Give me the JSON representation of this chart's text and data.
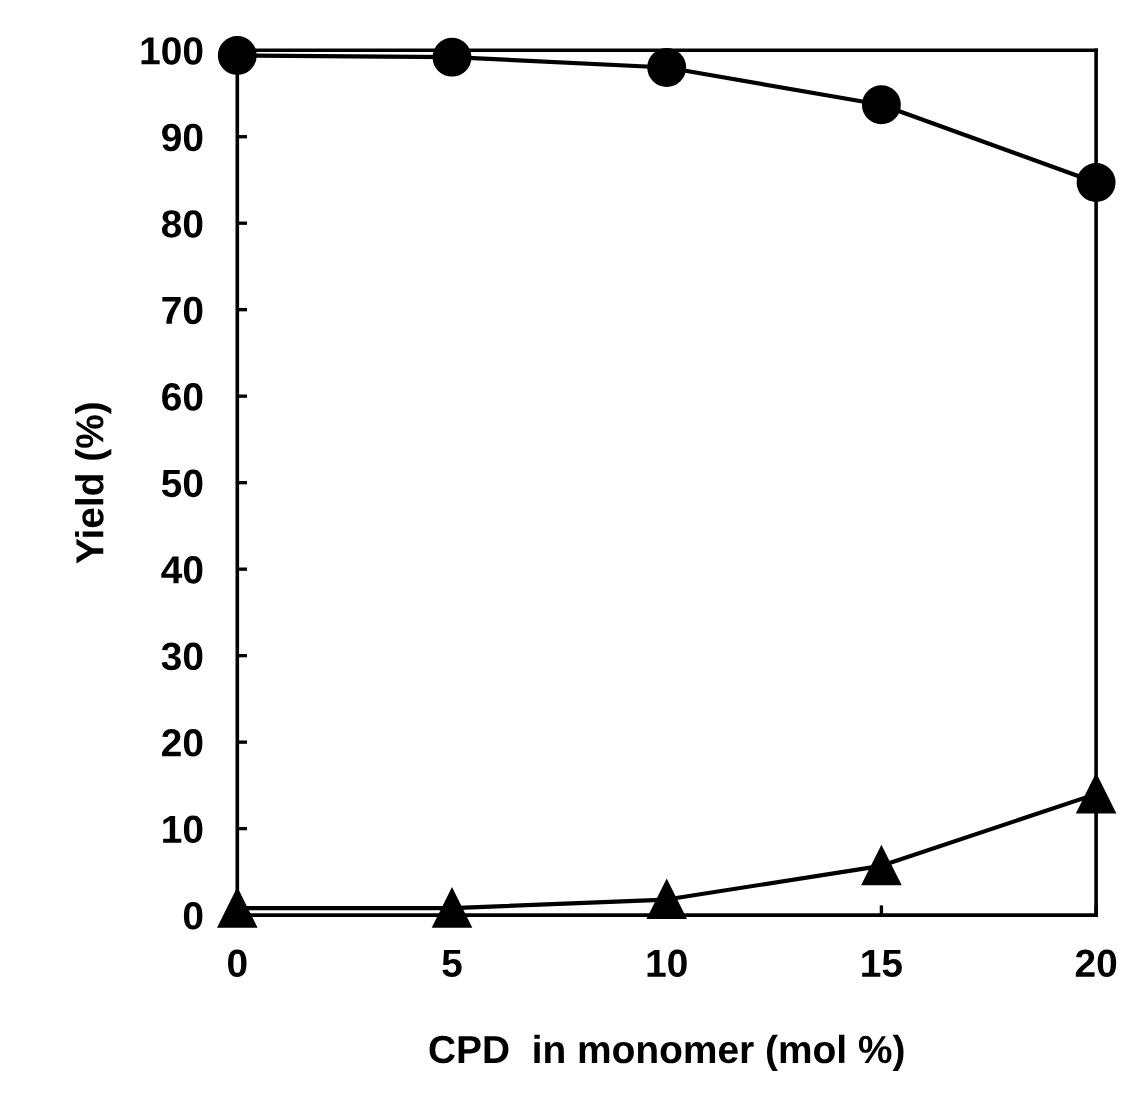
{
  "chart_data": {
    "type": "line",
    "xlabel": "CPD  in monomer (mol %)",
    "ylabel": "Yield (%)",
    "x": [
      0,
      5,
      10,
      15,
      20
    ],
    "series": [
      {
        "color": "#000000",
        "marker": "circle",
        "values": [
          99.4,
          99.2,
          98.0,
          93.7,
          84.7
        ]
      },
      {
        "color": "#000000",
        "marker": "triangle",
        "values": [
          0.8,
          0.8,
          1.8,
          5.7,
          14.0
        ]
      }
    ],
    "xlim": [
      0,
      20
    ],
    "xticks": [
      0,
      5,
      10,
      15,
      20
    ],
    "ylim": [
      0,
      100
    ],
    "yticks": [
      0,
      10,
      20,
      30,
      40,
      50,
      60,
      70,
      80,
      90,
      100
    ],
    "grid": false,
    "legend": false,
    "line_style": "solid"
  }
}
